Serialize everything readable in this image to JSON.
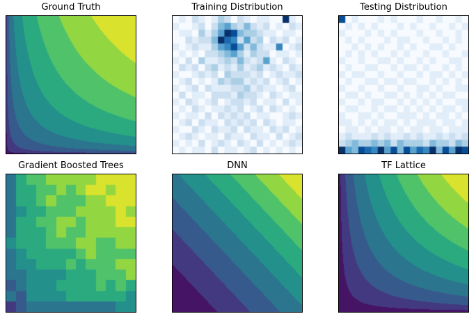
{
  "figure": {
    "background": "#ffffff"
  },
  "colormaps": {
    "viridis": [
      "#440154",
      "#46327e",
      "#365c8d",
      "#277f8e",
      "#1fa187",
      "#4ac16d",
      "#a0da39",
      "#fde725"
    ],
    "blues": [
      "#f7fbff",
      "#deebf7",
      "#c6dbef",
      "#9ecae1",
      "#6baed6",
      "#4292c6",
      "#2171b5",
      "#08519c",
      "#08306b"
    ]
  },
  "chart_data": [
    {
      "title": "Ground Truth",
      "type": "contour",
      "colormap": "viridis",
      "formula": "pow_xy",
      "exponent": 0.28,
      "levels": 9,
      "xrange": [
        0,
        1
      ],
      "yrange": [
        0,
        1
      ]
    },
    {
      "title": "Training Distribution",
      "type": "heatmap",
      "colormap": "blues",
      "vmax": 9,
      "rows": [
        "01021013202101100910",
        "10012024532421201021",
        "01103135984332110110",
        "00212249762523021201",
        "10121135685242116012",
        "01010223453132201101",
        "10203112324212510210",
        "02120231213123121021",
        "10012120322212012112",
        "01201013233121201201",
        "10120211122312110120",
        "02011022213221021011",
        "10210120122120110201",
        "01021011212012021010",
        "10110202121201100121",
        "01202110212120210110",
        "10021021120211021201",
        "01210110211021102012",
        "10102012102102010121",
        "01011020110120101010"
      ]
    },
    {
      "title": "Testing Distribution",
      "type": "heatmap",
      "colormap": "blues",
      "vmax": 9,
      "rows": [
        "80100010100010010010",
        "01010100010100100101",
        "10001010100010010010",
        "01010001011001001010",
        "00101010010100110100",
        "01010100101001001001",
        "10010011010010100110",
        "01001100101101001010",
        "10110010010010110101",
        "01001101101100101010",
        "10010010010011010011",
        "01101001101010101100",
        "10010110010101010011",
        "01100101101010101101",
        "10011010011101011010",
        "11010101101011101101",
        "01101011010110110111",
        "12111212112121121212",
        "23433434243332433243",
        "95487695848576948598"
      ]
    },
    {
      "title": "Gradient Boosted Trees",
      "type": "contour",
      "colormap": "viridis",
      "formula": "pow_xy_blocky",
      "exponent": 0.28,
      "levels": 9,
      "steps": 13,
      "floor": 0.12,
      "noise": 0.14,
      "xrange": [
        0,
        1
      ],
      "yrange": [
        0,
        1
      ]
    },
    {
      "title": "DNN",
      "type": "contour",
      "colormap": "viridis",
      "formula": "pow_sum",
      "exponent": 1.25,
      "levels": 9,
      "xrange": [
        0,
        1
      ],
      "yrange": [
        0,
        1
      ]
    },
    {
      "title": "TF Lattice",
      "type": "contour",
      "colormap": "viridis",
      "formula": "pow_xy",
      "exponent": 0.5,
      "levels": 9,
      "xrange": [
        0,
        1
      ],
      "yrange": [
        0,
        1
      ]
    }
  ]
}
